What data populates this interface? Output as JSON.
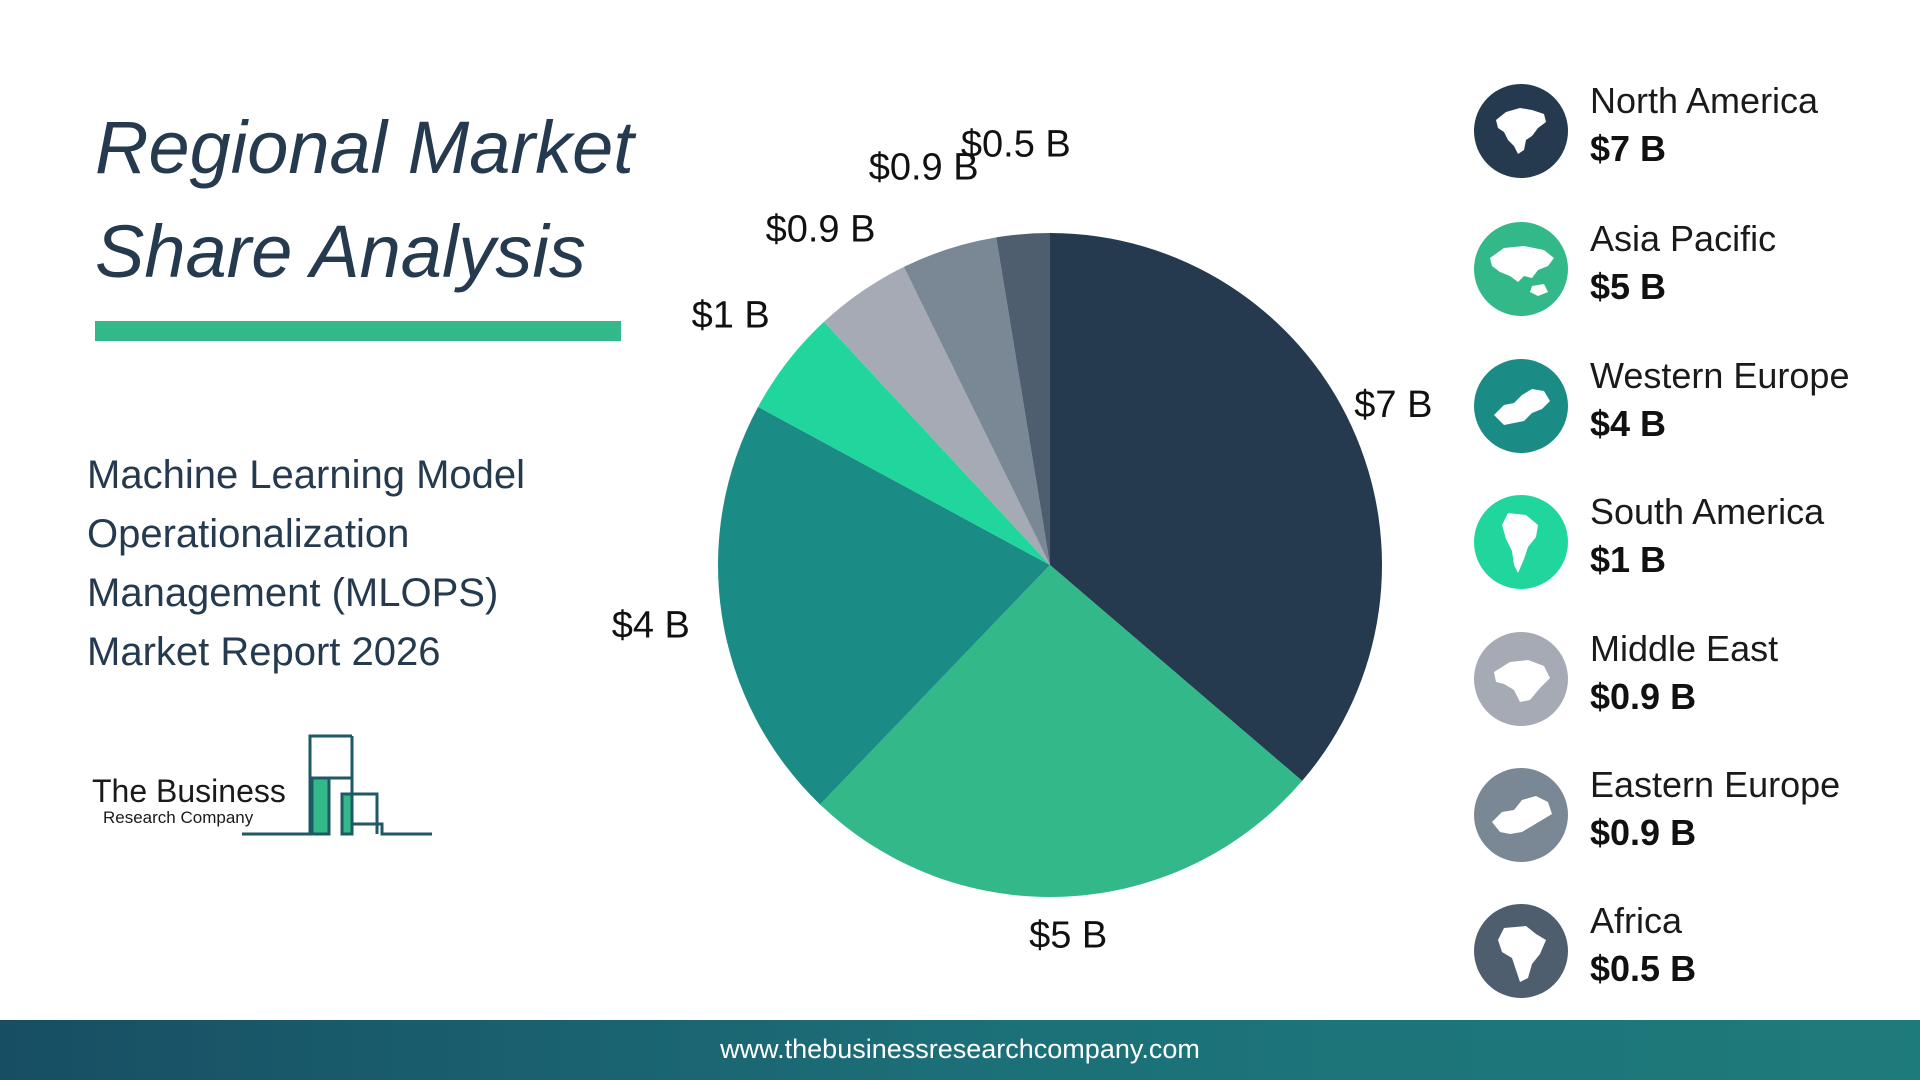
{
  "title": {
    "line1": "Regional Market",
    "line2": "Share Analysis"
  },
  "subtitle": {
    "line1": "Machine Learning Model",
    "line2": "Operationalization",
    "line3": "Management (MLOPS)",
    "line4": "Market Report 2026"
  },
  "logo": {
    "line1": "The Business",
    "line2": "Research Company"
  },
  "colors": {
    "accent": "#33b88a",
    "title": "#253a4f",
    "footer_start": "#174e63",
    "footer_end": "#1e7b7b"
  },
  "chart_data": {
    "type": "pie",
    "title": "",
    "categories": [
      "North America",
      "Asia Pacific",
      "Western Europe",
      "South America",
      "Middle East",
      "Eastern Europe",
      "Africa"
    ],
    "values": [
      7,
      5,
      4,
      1,
      0.9,
      0.9,
      0.5
    ],
    "labels": [
      "$7 B",
      "$5 B",
      "$4 B",
      "$1 B",
      "$0.9 B",
      "$0.9 B",
      "$0.5 B"
    ],
    "colors": [
      "#253a4f",
      "#33b88a",
      "#1b8c85",
      "#20d69c",
      "#a5aab4",
      "#7a8896",
      "#4e5e6f"
    ],
    "start_angle_deg": 0,
    "direction": "clockwise",
    "legend": "right"
  },
  "legend": [
    {
      "name": "North America",
      "value": "$7 B",
      "icon": "north-america-map-icon",
      "color": "#253a4f"
    },
    {
      "name": "Asia Pacific",
      "value": "$5 B",
      "icon": "asia-pacific-map-icon",
      "color": "#33b88a"
    },
    {
      "name": "Western Europe",
      "value": "$4 B",
      "icon": "western-europe-map-icon",
      "color": "#1b8c85"
    },
    {
      "name": "South America",
      "value": "$1 B",
      "icon": "south-america-map-icon",
      "color": "#20d69c"
    },
    {
      "name": "Middle East",
      "value": "$0.9 B",
      "icon": "middle-east-map-icon",
      "color": "#a5aab4"
    },
    {
      "name": "Eastern Europe",
      "value": "$0.9 B",
      "icon": "eastern-europe-map-icon",
      "color": "#7a8896"
    },
    {
      "name": "Africa",
      "value": "$0.5 B",
      "icon": "africa-map-icon",
      "color": "#4e5e6f"
    }
  ],
  "footer": {
    "url": "www.thebusinessresearchcompany.com"
  }
}
